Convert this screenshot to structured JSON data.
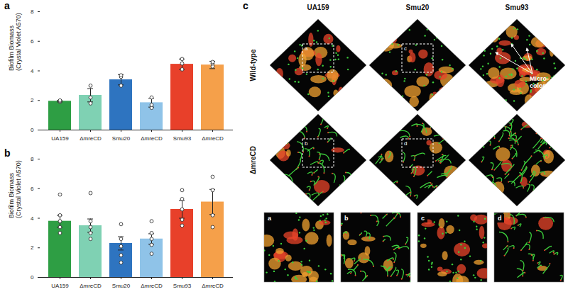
{
  "chart_data": [
    {
      "type": "bar",
      "panel_label": "a",
      "categories": [
        "UA159",
        "ΔmreCD",
        "Smu20",
        "ΔmreCD",
        "Smu93",
        "ΔmreCD"
      ],
      "values": [
        1.95,
        2.35,
        3.4,
        1.85,
        4.45,
        4.4
      ],
      "error": [
        0.05,
        0.45,
        0.35,
        0.3,
        0.35,
        0.25
      ],
      "points": [
        [
          1.9,
          1.95,
          2.0
        ],
        [
          1.8,
          2.2,
          3.0
        ],
        [
          3.0,
          3.6,
          3.7
        ],
        [
          1.5,
          1.7,
          2.2
        ],
        [
          4.1,
          4.5,
          4.8
        ],
        [
          4.3,
          4.5,
          4.6
        ]
      ],
      "colors": [
        "#2e9e44",
        "#7fd1b3",
        "#2e74c0",
        "#8fc3e8",
        "#e8402a",
        "#f5a04a"
      ],
      "y_label": "Biofilm Biomass (Crystal Violet A570)",
      "ylim": [
        0,
        8
      ],
      "yticks": [
        0,
        2,
        4,
        6,
        8
      ]
    },
    {
      "type": "bar",
      "panel_label": "b",
      "categories": [
        "UA159",
        "ΔmreCD",
        "Smu20",
        "ΔmreCD",
        "Smu93",
        "ΔmreCD"
      ],
      "values": [
        3.8,
        3.5,
        2.3,
        2.6,
        4.6,
        5.1
      ],
      "error": [
        0.4,
        0.45,
        0.45,
        0.35,
        0.6,
        0.85
      ],
      "points": [
        [
          3.0,
          3.4,
          3.8,
          4.2,
          5.6
        ],
        [
          2.6,
          3.0,
          3.4,
          3.8,
          5.7
        ],
        [
          1.0,
          1.5,
          2.1,
          2.6,
          3.6
        ],
        [
          1.6,
          2.2,
          2.6,
          3.0,
          3.8
        ],
        [
          3.5,
          3.9,
          4.6,
          5.3,
          5.9
        ],
        [
          3.4,
          4.2,
          5.9,
          6.8
        ]
      ],
      "colors": [
        "#2e9e44",
        "#7fd1b3",
        "#2e74c0",
        "#8fc3e8",
        "#e8402a",
        "#f5a04a"
      ],
      "y_label": "Biofilm Biomass (Crystal Violet A570)",
      "ylim": [
        0,
        8
      ],
      "yticks": [
        0,
        2,
        4,
        6,
        8
      ]
    }
  ],
  "images": {
    "panel_label": "c",
    "columns": [
      "UA159",
      "Smu20",
      "Smu93"
    ],
    "rows": [
      "Wild-type",
      "ΔmreCD"
    ],
    "annotation": "Micro-colonies",
    "insets": [
      "a",
      "b",
      "c",
      "d"
    ]
  }
}
